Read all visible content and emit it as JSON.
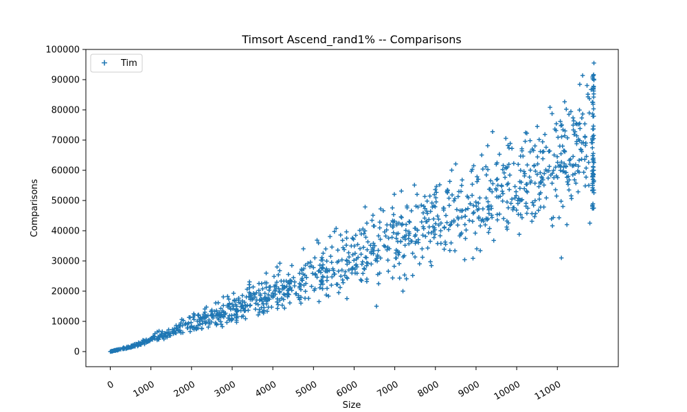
{
  "chart_data": {
    "type": "scatter",
    "title": "Timsort Ascend_rand1% -- Comparisons",
    "xlabel": "Size",
    "ylabel": "Comparisons",
    "xlim": [
      -600,
      12500
    ],
    "ylim": [
      -5000,
      100000
    ],
    "x_ticks": [
      0,
      1000,
      2000,
      3000,
      4000,
      5000,
      6000,
      7000,
      8000,
      9000,
      10000,
      11000
    ],
    "x_tick_labels": [
      "0",
      "1000",
      "2000",
      "3000",
      "4000",
      "5000",
      "6000",
      "7000",
      "8000",
      "9000",
      "10000",
      "11000"
    ],
    "y_ticks": [
      0,
      10000,
      20000,
      30000,
      40000,
      50000,
      60000,
      70000,
      80000,
      90000,
      100000
    ],
    "y_tick_labels": [
      "0",
      "10000",
      "20000",
      "30000",
      "40000",
      "50000",
      "60000",
      "70000",
      "80000",
      "90000",
      "100000"
    ],
    "grid": false,
    "legend_position": "top-left",
    "color": "#1f77b4",
    "marker": "plus",
    "series": [
      {
        "name": "Tim",
        "x_min": 0,
        "x_max": 11900,
        "point_count": 1200,
        "envelope": [
          {
            "x": 0,
            "lower": 0,
            "center": 0,
            "upper": 0
          },
          {
            "x": 500,
            "lower": 1200,
            "center": 1500,
            "upper": 2000
          },
          {
            "x": 1000,
            "lower": 3000,
            "center": 4000,
            "upper": 5500
          },
          {
            "x": 2000,
            "lower": 6000,
            "center": 8500,
            "upper": 12500
          },
          {
            "x": 3000,
            "lower": 9500,
            "center": 13500,
            "upper": 19000
          },
          {
            "x": 4000,
            "lower": 13000,
            "center": 19000,
            "upper": 27000
          },
          {
            "x": 5000,
            "lower": 15000,
            "center": 24500,
            "upper": 35000
          },
          {
            "x": 6000,
            "lower": 19000,
            "center": 30500,
            "upper": 44000
          },
          {
            "x": 7000,
            "lower": 23000,
            "center": 37000,
            "upper": 53000
          },
          {
            "x": 8000,
            "lower": 27000,
            "center": 43000,
            "upper": 60000
          },
          {
            "x": 9000,
            "lower": 33000,
            "center": 50000,
            "upper": 68000
          },
          {
            "x": 10000,
            "lower": 38000,
            "center": 57000,
            "upper": 77000
          },
          {
            "x": 11000,
            "lower": 43000,
            "center": 63000,
            "upper": 85000
          },
          {
            "x": 11900,
            "lower": 47000,
            "center": 70000,
            "upper": 93000
          }
        ],
        "outliers": [
          {
            "x": 7200,
            "y": 20000
          },
          {
            "x": 6550,
            "y": 15000
          },
          {
            "x": 11100,
            "y": 31000
          },
          {
            "x": 11900,
            "y": 95500
          },
          {
            "x": 11800,
            "y": 42500
          }
        ]
      }
    ]
  }
}
